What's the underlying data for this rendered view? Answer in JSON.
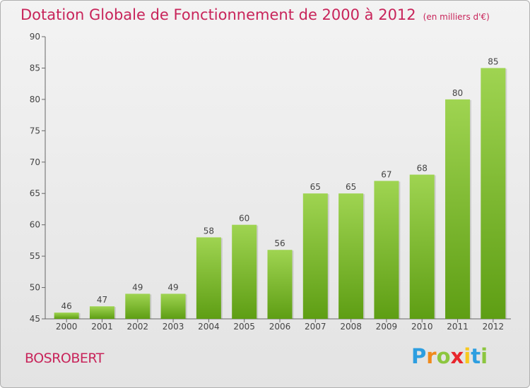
{
  "chart_data": {
    "type": "bar",
    "title": "Dotation Globale de Fonctionnement de 2000 à 2012",
    "unit_label": "(en milliers d'€)",
    "categories": [
      "2000",
      "2001",
      "2002",
      "2003",
      "2004",
      "2005",
      "2006",
      "2007",
      "2008",
      "2009",
      "2010",
      "2011",
      "2012"
    ],
    "values": [
      46,
      47,
      49,
      49,
      58,
      60,
      56,
      65,
      65,
      67,
      68,
      80,
      85
    ],
    "xlabel": "",
    "ylabel": "",
    "ylim": [
      45,
      90
    ],
    "yticks": [
      45,
      50,
      55,
      60,
      65,
      70,
      75,
      80,
      85,
      90
    ],
    "grid": false,
    "colors": {
      "bar_top": "#9fd451",
      "bar_bottom": "#5e9e14",
      "title": "#c8245a"
    }
  },
  "commune": "BOSROBERT",
  "logo": {
    "letters": [
      "P",
      "r",
      "o",
      "x",
      "i",
      "t",
      "i"
    ],
    "colors": [
      "#2d9ee0",
      "#f08a1c",
      "#8cc63f",
      "#e8262d",
      "#f7c81e",
      "#2d9ee0",
      "#8cc63f"
    ]
  }
}
